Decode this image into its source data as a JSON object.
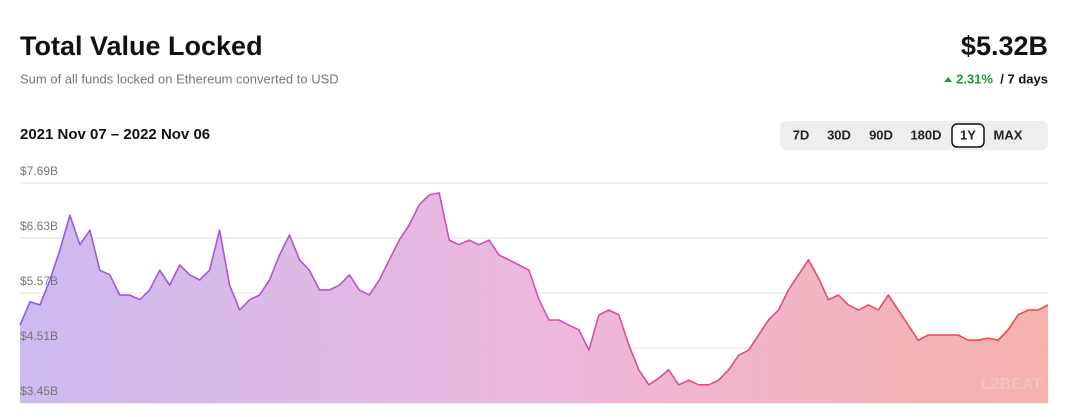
{
  "header": {
    "title": "Total Value Locked",
    "subtitle": "Sum of all funds locked on Ethereum converted to USD",
    "value": "$5.32B",
    "change": "2.31%",
    "period": "/ 7 days",
    "date_range": "2021 Nov 07 – 2022 Nov 06",
    "timeframes": [
      "7D",
      "30D",
      "90D",
      "180D",
      "1Y",
      "MAX"
    ],
    "selected_timeframe": 4
  },
  "chart_data": {
    "type": "area",
    "watermark": "L2BEAT",
    "values": [
      4.95,
      5.4,
      5.34,
      5.82,
      6.4,
      7.07,
      6.5,
      6.78,
      6.01,
      5.92,
      5.53,
      5.53,
      5.44,
      5.63,
      6.01,
      5.72,
      6.11,
      5.92,
      5.82,
      6.01,
      6.78,
      5.72,
      5.24,
      5.44,
      5.53,
      5.82,
      6.3,
      6.69,
      6.21,
      6.01,
      5.63,
      5.63,
      5.72,
      5.92,
      5.63,
      5.53,
      5.82,
      6.21,
      6.59,
      6.88,
      7.27,
      7.46,
      7.5,
      6.59,
      6.5,
      6.59,
      6.5,
      6.59,
      6.3,
      6.21,
      6.11,
      6.01,
      5.44,
      5.05,
      5.05,
      4.95,
      4.86,
      4.47,
      5.15,
      5.24,
      5.15,
      4.57,
      4.09,
      3.8,
      3.93,
      4.09,
      3.8,
      3.89,
      3.8,
      3.8,
      3.89,
      4.09,
      4.37,
      4.47,
      4.76,
      5.05,
      5.24,
      5.63,
      5.92,
      6.21,
      5.86,
      5.44,
      5.53,
      5.34,
      5.24,
      5.34,
      5.24,
      5.53,
      5.24,
      4.95,
      4.66,
      4.76,
      4.76,
      4.76,
      4.76,
      4.66,
      4.66,
      4.7,
      4.66,
      4.86,
      5.15,
      5.24,
      5.24,
      5.34
    ],
    "ylim": [
      3.45,
      7.69
    ],
    "yticks": [
      {
        "value": 3.45,
        "label": "$3.45B"
      },
      {
        "value": 4.51,
        "label": "$4.51B"
      },
      {
        "value": 5.57,
        "label": "$5.57B"
      },
      {
        "value": 6.63,
        "label": "$6.63B"
      },
      {
        "value": 7.69,
        "label": "$7.69B"
      }
    ],
    "grid": true,
    "colors": [
      "#8e5ce8",
      "#d44fb4",
      "#ee4a3c"
    ],
    "fill_colors": [
      "#c6b3ee",
      "#ebb0da",
      "#f4aaa2"
    ]
  }
}
